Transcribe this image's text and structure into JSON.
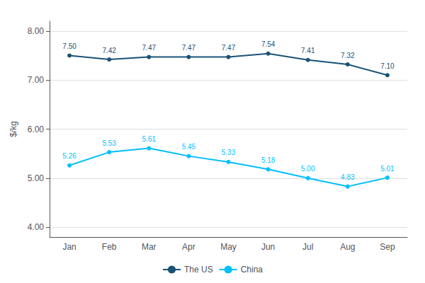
{
  "chart_data": {
    "type": "line",
    "categories": [
      "Jan",
      "Feb",
      "Mar",
      "Apr",
      "May",
      "Jun",
      "Jul",
      "Aug",
      "Sep"
    ],
    "series": [
      {
        "name": "The US",
        "color": "#1a5276",
        "values": [
          7.5,
          7.42,
          7.47,
          7.47,
          7.47,
          7.54,
          7.41,
          7.32,
          7.1
        ],
        "value_labels": [
          "7.50",
          "7.42",
          "7.47",
          "7.47",
          "7.47",
          "7.54",
          "7.41",
          "7.32",
          "7.10"
        ]
      },
      {
        "name": "China",
        "color": "#00bfff",
        "values": [
          5.26,
          5.53,
          5.61,
          5.45,
          5.33,
          5.18,
          5.0,
          4.83,
          5.01
        ],
        "value_labels": [
          "5.26",
          "5.53",
          "5.61",
          "5.45",
          "5.33",
          "5.18",
          "5.00",
          "4.83",
          "5.01"
        ]
      }
    ],
    "ylabel": "$/kg",
    "ylim": [
      3.8,
      8.2
    ],
    "yticks": [
      {
        "value": 4.0,
        "label": "4.00"
      },
      {
        "value": 5.0,
        "label": "5.00"
      },
      {
        "value": 6.0,
        "label": "6.00"
      },
      {
        "value": 7.0,
        "label": "7.00"
      },
      {
        "value": 8.0,
        "label": "8.00"
      }
    ],
    "grid": true,
    "legend": "bottom",
    "data_labels": true,
    "marker": "circle"
  }
}
